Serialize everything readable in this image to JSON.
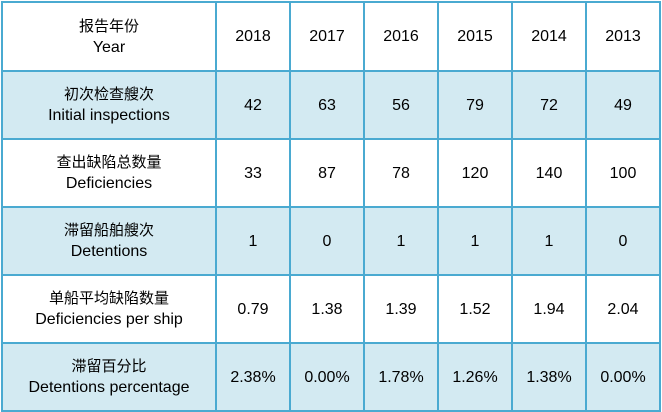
{
  "header": {
    "label_zh": "报告年份",
    "label_en": "Year",
    "years": [
      "2018",
      "2017",
      "2016",
      "2015",
      "2014",
      "2013"
    ]
  },
  "rows": [
    {
      "label_zh": "初次检查艘次",
      "label_en": "Initial inspections",
      "values": [
        "42",
        "63",
        "56",
        "79",
        "72",
        "49"
      ]
    },
    {
      "label_zh": "查出缺陷总数量",
      "label_en": "Deficiencies",
      "values": [
        "33",
        "87",
        "78",
        "120",
        "140",
        "100"
      ]
    },
    {
      "label_zh": "滞留船舶艘次",
      "label_en": "Detentions",
      "values": [
        "1",
        "0",
        "1",
        "1",
        "1",
        "0"
      ]
    },
    {
      "label_zh": "单船平均缺陷数量",
      "label_en": "Deficiencies per ship",
      "values": [
        "0.79",
        "1.38",
        "1.39",
        "1.52",
        "1.94",
        "2.04"
      ]
    },
    {
      "label_zh": "滞留百分比",
      "label_en": "Detentions percentage",
      "values": [
        "2.38%",
        "0.00%",
        "1.78%",
        "1.26%",
        "1.38%",
        "0.00%"
      ]
    }
  ],
  "colors": {
    "border": "#4aaad1",
    "alt_row": "#d3eaf2",
    "plain_row": "#ffffff"
  }
}
